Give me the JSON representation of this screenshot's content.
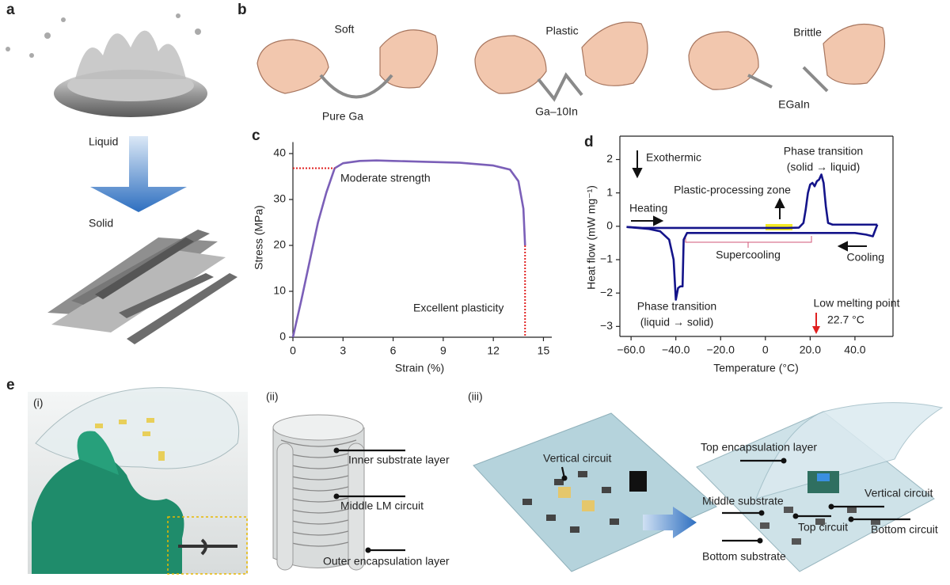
{
  "panel_labels": [
    "a",
    "b",
    "c",
    "d",
    "e"
  ],
  "panel_a": {
    "top": "Liquid",
    "bottom": "Solid"
  },
  "panel_b": {
    "behaviors": [
      "Soft",
      "Plastic",
      "Brittle"
    ],
    "materials": [
      "Pure Ga",
      "Ga–10In",
      "EGaIn"
    ]
  },
  "chart_data": [
    {
      "type": "line",
      "xlabel": "Strain (%)",
      "ylabel": "Stress (MPa)",
      "xlim": [
        0,
        15.5
      ],
      "ylim": [
        0,
        42.5
      ],
      "xticks": [
        0,
        3,
        6,
        9,
        12,
        15
      ],
      "yticks": [
        0,
        10,
        20,
        30,
        40
      ],
      "annotations": [
        "Moderate strength",
        "Excellent plasticity"
      ],
      "series": [
        {
          "color": "#7b5fb8",
          "x": [
            0,
            0.5,
            1,
            1.5,
            2,
            2.5,
            3,
            4,
            5,
            6,
            8,
            10,
            12,
            13,
            13.5,
            13.8,
            13.9
          ],
          "values": [
            0,
            8,
            16.5,
            25,
            31.5,
            36.8,
            37.9,
            38.4,
            38.5,
            38.4,
            38.2,
            38,
            37.4,
            36.5,
            34,
            28,
            20
          ]
        }
      ]
    },
    {
      "type": "line",
      "xlabel": "Temperature (°C)",
      "ylabel": "Heat flow (mW mg⁻¹)",
      "xlim": [
        -65,
        57
      ],
      "ylim": [
        -3.3,
        2.7
      ],
      "xticks": [
        {
          "value": -60,
          "label": "−60.0"
        },
        {
          "value": -40,
          "label": "−40.0"
        },
        {
          "value": -20,
          "label": "−20.0"
        },
        0,
        {
          "value": 20,
          "label": "20.0"
        },
        {
          "value": 40,
          "label": "40.0"
        }
      ],
      "yticks": [
        2,
        1,
        0,
        {
          "value": -1,
          "label": "−1"
        },
        {
          "value": -2,
          "label": "−2"
        },
        {
          "value": -3,
          "label": "−3"
        }
      ],
      "annotations": [
        "Exothermic",
        "Heating",
        "Phase transition",
        "(solid → liquid)",
        "Plastic-processing zone",
        "Supercooling",
        "Cooling",
        "Phase transition",
        "(liquid → solid)",
        "Low melting point"
      ],
      "melting_point": {
        "value": 22.7,
        "label": "22.7 °C"
      },
      "series": [
        {
          "color": "#14148a",
          "x": [
            -62,
            -55,
            -45,
            -35,
            -20,
            0,
            10,
            15,
            17,
            18,
            19,
            20,
            21,
            22,
            23,
            24,
            25,
            26,
            27,
            28,
            30,
            40,
            48,
            50
          ],
          "values": [
            -0.02,
            -0.05,
            -0.05,
            -0.05,
            -0.05,
            -0.05,
            -0.05,
            -0.04,
            0.1,
            0.5,
            1.0,
            1.25,
            1.3,
            1.2,
            1.35,
            1.4,
            1.55,
            1.3,
            0.6,
            0.1,
            0.05,
            0.05,
            0.05,
            0.05
          ]
        },
        {
          "color": "#14148a",
          "x": [
            50,
            48,
            45,
            40,
            20,
            0,
            -20,
            -35,
            -36.5,
            -37,
            -38,
            -39,
            -40,
            -41,
            -43,
            -47,
            -52,
            -57,
            -62
          ],
          "values": [
            0.05,
            -0.3,
            -0.25,
            -0.2,
            -0.2,
            -0.2,
            -0.2,
            -0.2,
            -0.4,
            -1.8,
            -1.8,
            -1.85,
            -2.2,
            -1.0,
            -0.4,
            -0.15,
            -0.08,
            -0.05,
            -0.02
          ]
        }
      ]
    }
  ],
  "panel_e": {
    "subpanels": [
      "(i)",
      "(ii)",
      "(iii)"
    ],
    "ii_labels": [
      "Inner substrate layer",
      "Middle LM circuit",
      "Outer encapsulation layer"
    ],
    "iii_left_label": "Vertical circuit",
    "iii_right_labels": [
      "Top encapsulation layer",
      "Middle substrate",
      "Vertical circuit",
      "Bottom circuit",
      "Bottom substrate",
      "Top circuit"
    ]
  }
}
